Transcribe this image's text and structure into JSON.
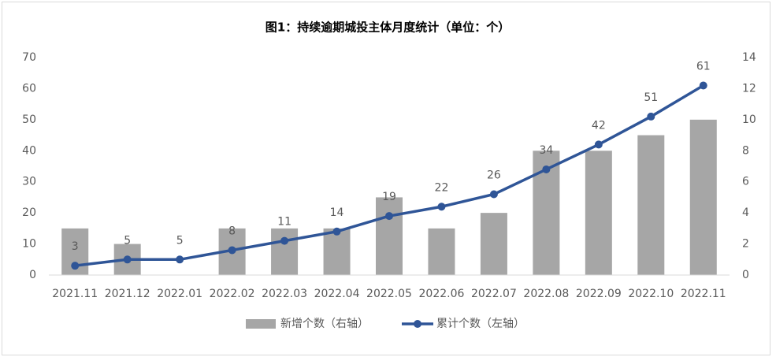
{
  "chart_data": {
    "type": "bar_line",
    "title": "图1：持续逾期城投主体月度统计（单位：个）",
    "categories": [
      "2021.11",
      "2021.12",
      "2022.01",
      "2022.02",
      "2022.03",
      "2022.04",
      "2022.05",
      "2022.06",
      "2022.07",
      "2022.08",
      "2022.09",
      "2022.10",
      "2022.11"
    ],
    "series": [
      {
        "name": "新增个数（右轴）",
        "type": "bar",
        "axis": "y2",
        "color": "#a6a6a6",
        "values": [
          3,
          2,
          0,
          3,
          3,
          3,
          5,
          3,
          4,
          8,
          8,
          9,
          10
        ]
      },
      {
        "name": "累计个数（左轴）",
        "type": "line",
        "color": "#2f5597",
        "values": [
          3,
          5,
          5,
          8,
          11,
          14,
          19,
          22,
          26,
          34,
          42,
          51,
          61
        ]
      }
    ],
    "ylim": [
      0,
      70
    ],
    "yticks": [
      0,
      10,
      20,
      30,
      40,
      50,
      60,
      70
    ],
    "y2lim": [
      0,
      14
    ],
    "y2ticks": [
      0,
      2,
      4,
      6,
      8,
      10,
      12,
      14
    ],
    "grid": false,
    "legend": "bottom"
  }
}
